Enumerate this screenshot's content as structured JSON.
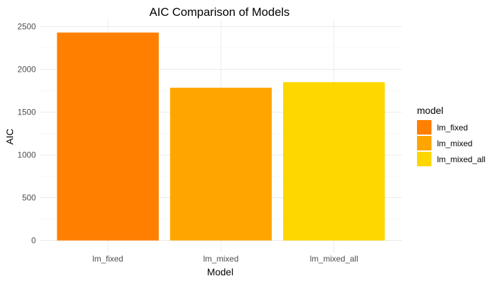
{
  "chart_data": {
    "type": "bar",
    "title": "AIC Comparison of Models",
    "xlabel": "Model",
    "ylabel": "AIC",
    "categories": [
      "lm_fixed",
      "lm_mixed",
      "lm_mixed_all"
    ],
    "values": [
      2430,
      1785,
      1850
    ],
    "colors": [
      "#FF7F00",
      "#FFA500",
      "#FFD700"
    ],
    "ylim": [
      0,
      2500
    ],
    "yticks": [
      0,
      500,
      1000,
      1500,
      2000,
      2500
    ],
    "grid": true,
    "legend": {
      "title": "model",
      "position": "right",
      "entries": [
        "lm_fixed",
        "lm_mixed",
        "lm_mixed_all"
      ]
    }
  }
}
